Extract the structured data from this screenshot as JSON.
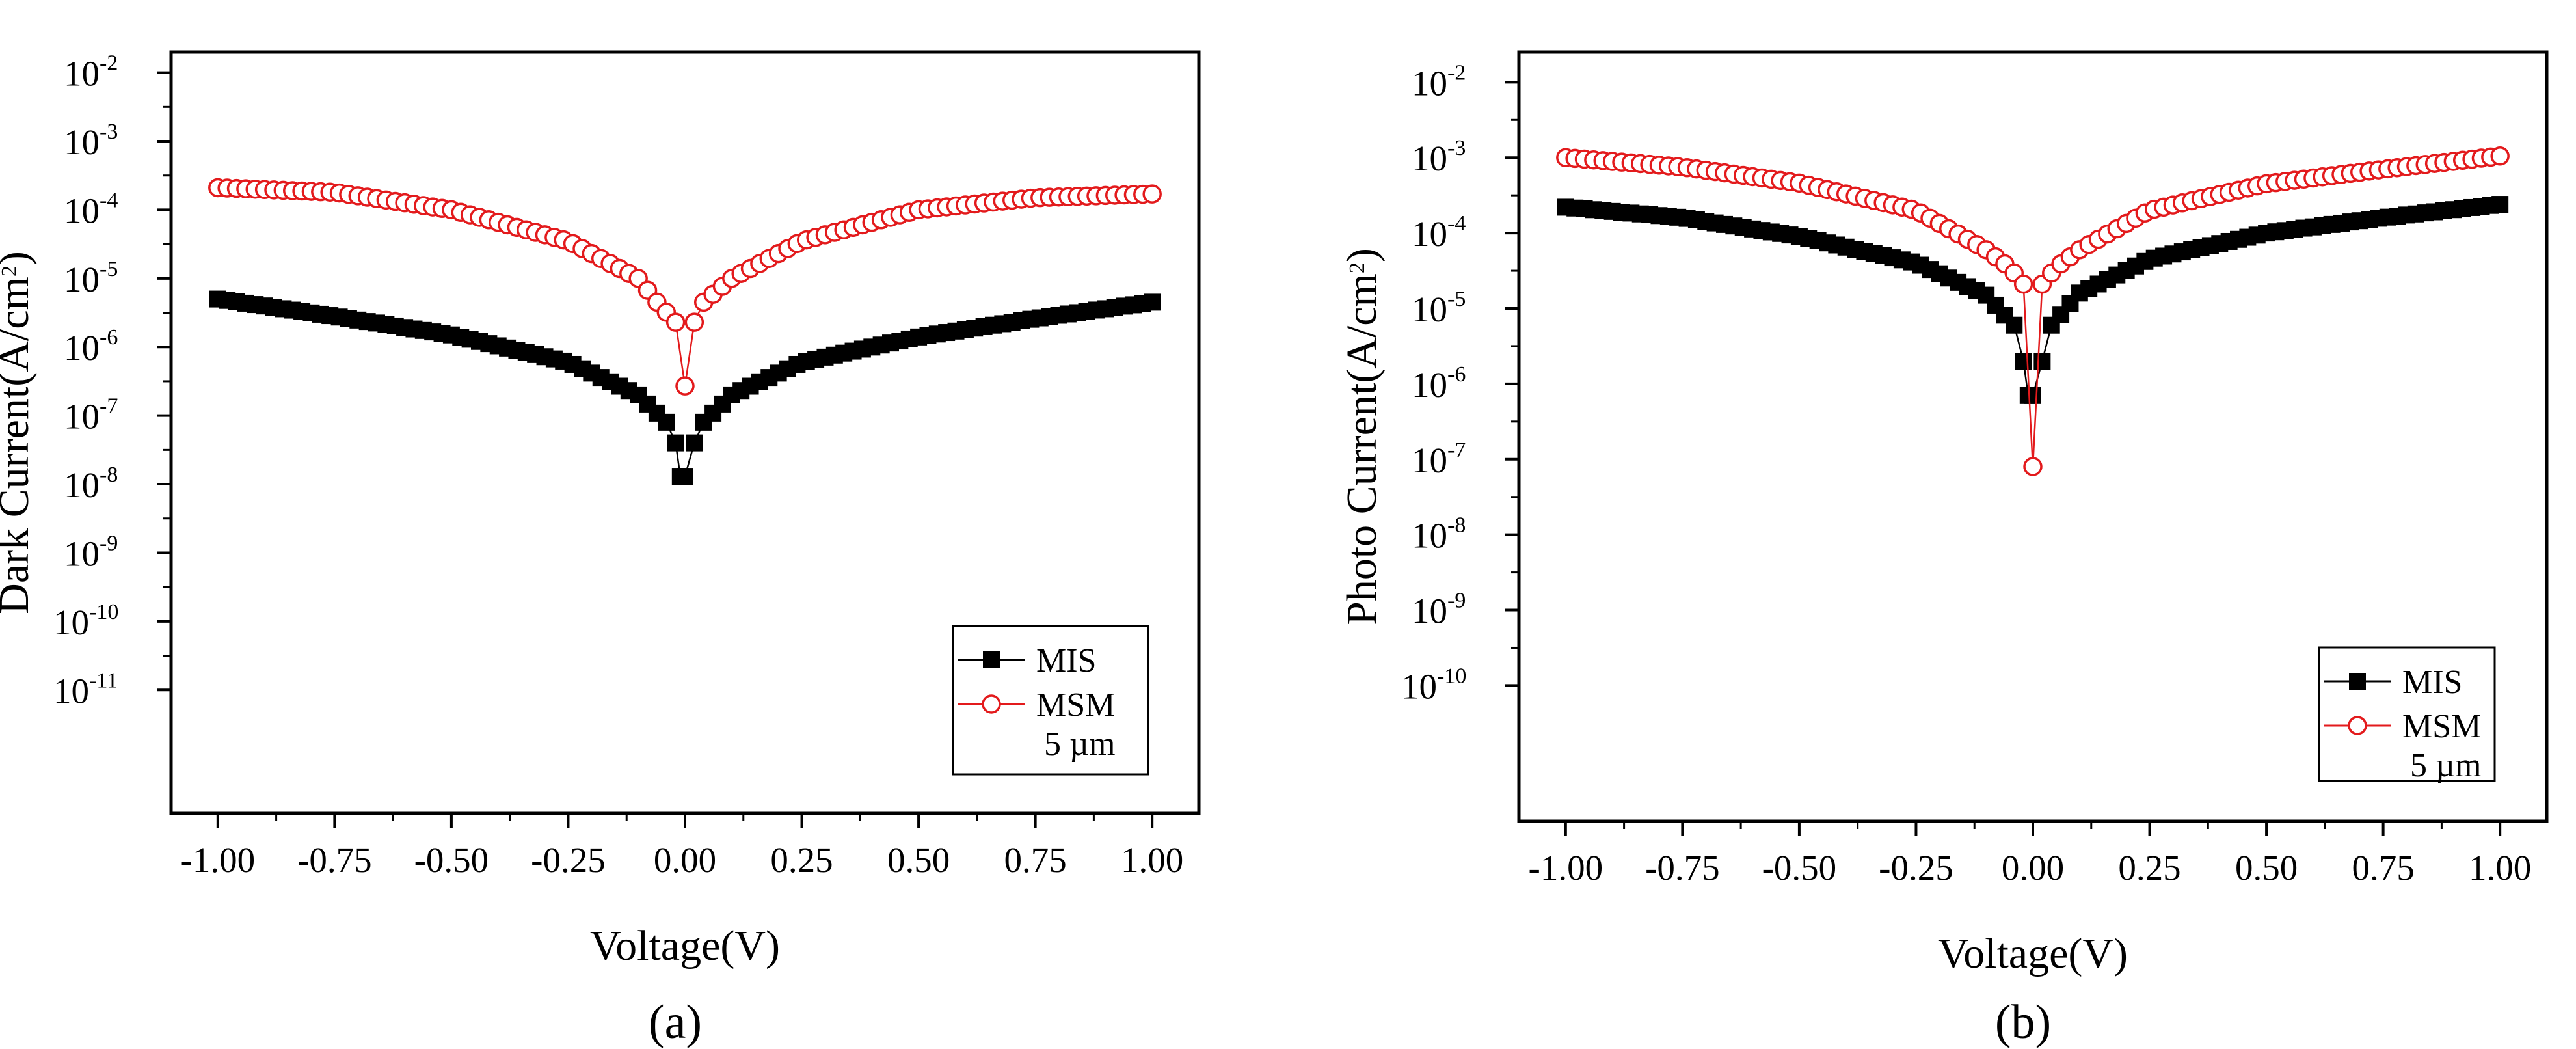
{
  "colors": {
    "mis": "#000000",
    "msm": "#e31a1c",
    "axis": "#000000"
  },
  "chart_data": [
    {
      "type": "scatter",
      "scale_y": "log",
      "panel_label": "(a)",
      "xlabel": "Voltage(V)",
      "ylabel": "Dark Current(A/cm²)",
      "ylabel_parts": {
        "pre": "Dark Current(A/cm",
        "sup": "2",
        "post": ")"
      },
      "xlim": [
        -1.1,
        1.1
      ],
      "ylim_exp": [
        -12.8,
        -1.7
      ],
      "x_ticks": [
        -1.0,
        -0.75,
        -0.5,
        -0.25,
        0.0,
        0.25,
        0.5,
        0.75,
        1.0
      ],
      "x_tick_labels": [
        "-1.00",
        "-0.75",
        "-0.50",
        "-0.25",
        "0.00",
        "0.25",
        "0.50",
        "0.75",
        "1.00"
      ],
      "y_tick_exponents": [
        -11,
        -10,
        -9,
        -8,
        -7,
        -6,
        -5,
        -4,
        -3,
        -2
      ],
      "y_tick_base": "10",
      "y_tick_sups": [
        "-11",
        "-10",
        "-9",
        "-8",
        "-7",
        "-6",
        "-5",
        "-4",
        "-3",
        "-2"
      ],
      "legend": {
        "placement": "bottom-right",
        "entries": [
          "MIS",
          "MSM"
        ],
        "note": "5 µm"
      },
      "series": [
        {
          "name": "MIS",
          "marker": "filled-square",
          "color": "#000000",
          "x_range": [
            -1.0,
            1.0
          ],
          "step": 0.02,
          "x0": 0.01,
          "min_value": 1.3e-08,
          "neg_anchors": [
            [
              -1.0,
              5e-06
            ],
            [
              -0.75,
              2.8e-06
            ],
            [
              -0.5,
              1.5e-06
            ],
            [
              -0.25,
              6e-07
            ],
            [
              -0.1,
              2e-07
            ],
            [
              -0.04,
              8e-08
            ],
            [
              -0.02,
              4e-08
            ]
          ],
          "pos_anchors": [
            [
              0.02,
              4e-08
            ],
            [
              0.04,
              8e-08
            ],
            [
              0.1,
              2e-07
            ],
            [
              0.25,
              6e-07
            ],
            [
              0.5,
              1.4e-06
            ],
            [
              0.75,
              2.6e-06
            ],
            [
              1.0,
              4.5e-06
            ]
          ]
        },
        {
          "name": "MSM",
          "marker": "open-circle",
          "color": "#e31a1c",
          "x_range": [
            -1.0,
            1.0
          ],
          "step": 0.02,
          "x0": 0.0,
          "min_value": 2.7e-07,
          "neg_anchors": [
            [
              -1.0,
              0.00021
            ],
            [
              -0.75,
              0.00018
            ],
            [
              -0.5,
              0.0001
            ],
            [
              -0.25,
              3.5e-05
            ],
            [
              -0.1,
              1e-05
            ],
            [
              -0.06,
              4.5e-06
            ],
            [
              -0.02,
              2.3e-06
            ]
          ],
          "pos_anchors": [
            [
              0.02,
              2.3e-06
            ],
            [
              0.04,
              4.5e-06
            ],
            [
              0.1,
              1e-05
            ],
            [
              0.25,
              3.5e-05
            ],
            [
              0.5,
              0.0001
            ],
            [
              0.75,
              0.00015
            ],
            [
              1.0,
              0.00017
            ]
          ]
        }
      ]
    },
    {
      "type": "scatter",
      "scale_y": "log",
      "panel_label": "(b)",
      "xlabel": "Voltage(V)",
      "ylabel": "Photo Current(A/cm²)",
      "ylabel_parts": {
        "pre": "Photo Current(A/cm",
        "sup": "2",
        "post": ")"
      },
      "xlim": [
        -1.1,
        1.1
      ],
      "ylim_exp": [
        -11.8,
        -1.6
      ],
      "x_ticks": [
        -1.0,
        -0.75,
        -0.5,
        -0.25,
        0.0,
        0.25,
        0.5,
        0.75,
        1.0
      ],
      "x_tick_labels": [
        "-1.00",
        "-0.75",
        "-0.50",
        "-0.25",
        "0.00",
        "0.25",
        "0.50",
        "0.75",
        "1.00"
      ],
      "y_tick_exponents": [
        -10,
        -9,
        -8,
        -7,
        -6,
        -5,
        -4,
        -3,
        -2
      ],
      "y_tick_base": "10",
      "y_tick_sups": [
        "-10",
        "-9",
        "-8",
        "-7",
        "-6",
        "-5",
        "-4",
        "-3",
        "-2"
      ],
      "legend": {
        "placement": "bottom-right",
        "entries": [
          "MIS",
          "MSM"
        ],
        "note": "5 µm"
      },
      "series": [
        {
          "name": "MIS",
          "marker": "filled-square",
          "color": "#000000",
          "x_range": [
            -1.0,
            1.0
          ],
          "step": 0.02,
          "x0": 0.01,
          "min_value": 7e-07,
          "neg_anchors": [
            [
              -1.0,
              0.00022
            ],
            [
              -0.75,
              0.00016
            ],
            [
              -0.5,
              9e-05
            ],
            [
              -0.25,
              4e-05
            ],
            [
              -0.1,
              1.5e-05
            ],
            [
              -0.04,
              6e-06
            ],
            [
              -0.02,
              2e-06
            ]
          ],
          "pos_anchors": [
            [
              0.02,
              2e-06
            ],
            [
              0.04,
              6e-06
            ],
            [
              0.1,
              1.6e-05
            ],
            [
              0.25,
              4.5e-05
            ],
            [
              0.5,
              0.0001
            ],
            [
              0.75,
              0.00016
            ],
            [
              1.0,
              0.00024
            ]
          ]
        },
        {
          "name": "MSM",
          "marker": "open-circle",
          "color": "#e31a1c",
          "x_range": [
            -1.0,
            1.0
          ],
          "step": 0.02,
          "x0": 0.0,
          "min_value": 8e-08,
          "neg_anchors": [
            [
              -1.0,
              0.001
            ],
            [
              -0.75,
              0.00075
            ],
            [
              -0.5,
              0.00046
            ],
            [
              -0.25,
              0.0002
            ],
            [
              -0.1,
              6e-05
            ],
            [
              -0.05,
              3.5e-05
            ],
            [
              -0.02,
              2.1e-05
            ]
          ],
          "pos_anchors": [
            [
              0.02,
              2.1e-05
            ],
            [
              0.05,
              3.5e-05
            ],
            [
              0.1,
              6e-05
            ],
            [
              0.25,
              0.0002
            ],
            [
              0.5,
              0.00045
            ],
            [
              0.75,
              0.0007
            ],
            [
              1.0,
              0.00105
            ]
          ]
        }
      ]
    }
  ]
}
